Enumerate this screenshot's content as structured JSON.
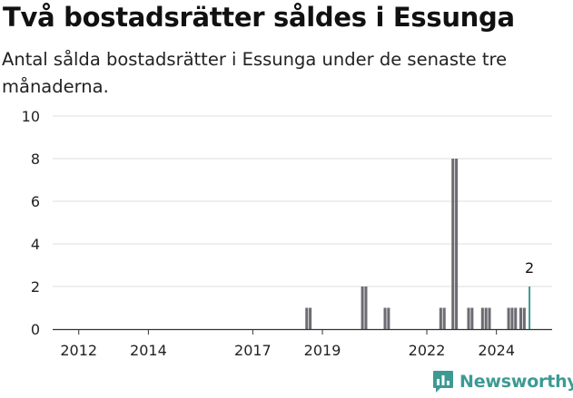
{
  "header": {
    "title": "Två bostadsrätter såldes i Essunga",
    "subtitle": "Antal sålda bostadsrätter i Essunga under de senaste tre månaderna."
  },
  "brand": {
    "name": "Newsworthy",
    "icon": "newsworthy-logo-icon",
    "color": "#3d9a93"
  },
  "chart_data": {
    "type": "bar",
    "title": "Två bostadsrätter såldes i Essunga",
    "subtitle": "Antal sålda bostadsrätter i Essunga under de senaste tre månaderna.",
    "xlabel": "",
    "ylabel": "",
    "ylim": [
      0,
      10
    ],
    "yticks": [
      0,
      2,
      4,
      6,
      8,
      10
    ],
    "xlim": [
      2011.25,
      2025.6
    ],
    "xticks": [
      2012,
      2014,
      2017,
      2019,
      2022,
      2024
    ],
    "grid": true,
    "bar_width_years": 0.08,
    "colors": {
      "bar": "#6e6c73",
      "highlight": "#3d9a93",
      "grid": "#dddddd",
      "axis": "#333333"
    },
    "x": [
      2018.55,
      2018.65,
      2020.15,
      2020.25,
      2020.8,
      2020.9,
      2022.4,
      2022.5,
      2022.75,
      2022.85,
      2023.2,
      2023.3,
      2023.6,
      2023.7,
      2023.8,
      2024.35,
      2024.45,
      2024.55,
      2024.7,
      2024.8,
      2024.95
    ],
    "values": [
      1,
      1,
      2,
      2,
      1,
      1,
      1,
      1,
      8,
      8,
      1,
      1,
      1,
      1,
      1,
      1,
      1,
      1,
      1,
      1,
      2
    ],
    "highlight": {
      "x": 2024.95,
      "value": 2,
      "label": "2"
    }
  }
}
